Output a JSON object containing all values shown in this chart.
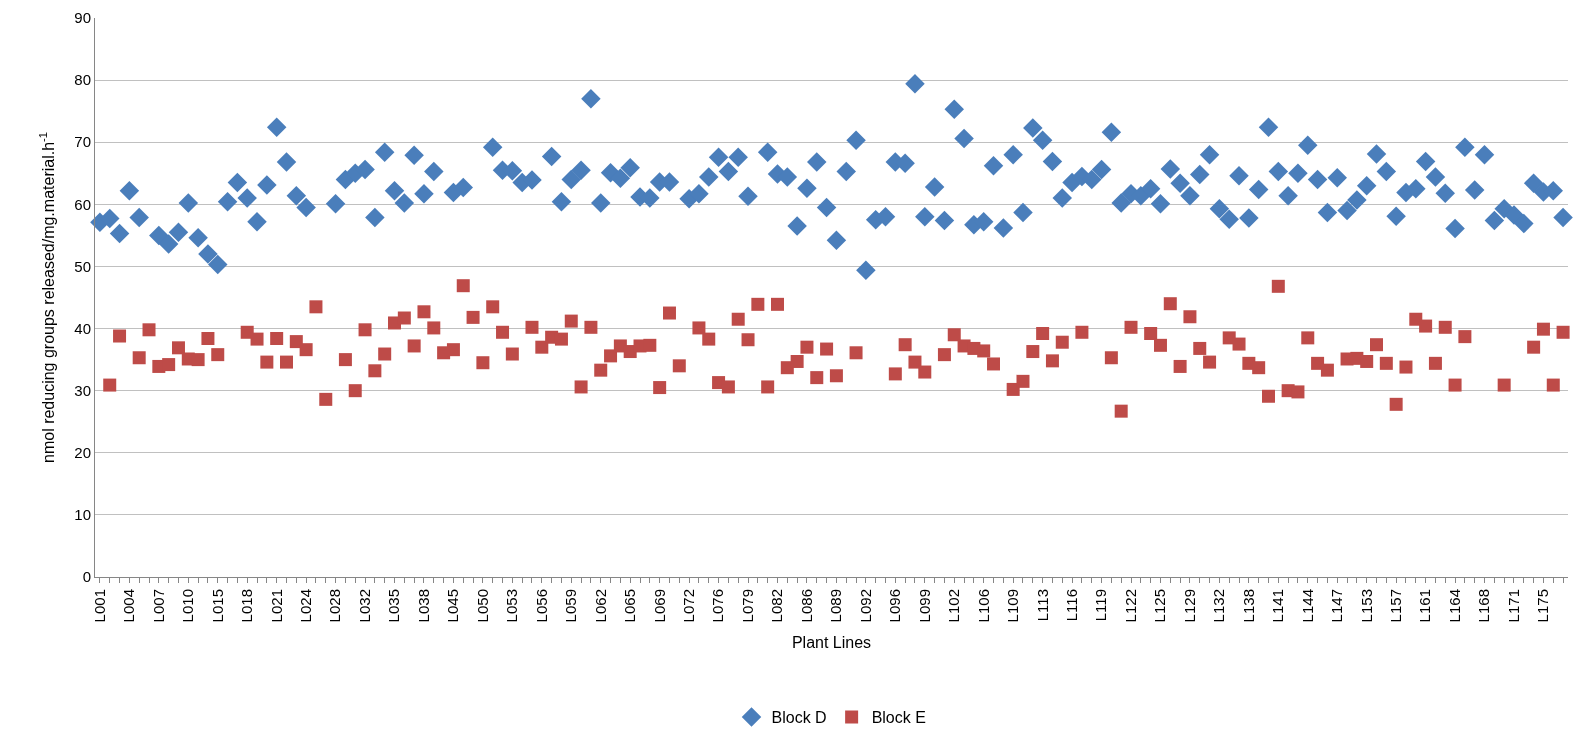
{
  "chart_data": {
    "type": "scatter",
    "xlabel": "Plant Lines",
    "ylabel": "nmol reducing groups released/mg.material.h$^{-1}$",
    "categories": [
      "L001",
      null,
      null,
      "L004",
      null,
      null,
      "L007",
      null,
      null,
      "L010",
      null,
      null,
      "L015",
      null,
      null,
      "L018",
      null,
      null,
      "L021",
      null,
      null,
      "L024",
      null,
      null,
      "L028",
      null,
      null,
      "L032",
      null,
      null,
      "L035",
      null,
      null,
      "L038",
      null,
      null,
      "L045",
      null,
      null,
      "L050",
      null,
      null,
      "L053",
      null,
      null,
      "L056",
      null,
      null,
      "L059",
      null,
      null,
      "L062",
      null,
      null,
      "L065",
      null,
      null,
      "L069",
      null,
      null,
      "L072",
      null,
      null,
      "L076",
      null,
      null,
      "L079",
      null,
      null,
      "L082",
      null,
      null,
      "L086",
      null,
      null,
      "L089",
      null,
      null,
      "L092",
      null,
      null,
      "L096",
      null,
      null,
      "L099",
      null,
      null,
      "L102",
      null,
      null,
      "L106",
      null,
      null,
      "L109",
      null,
      null,
      "L113",
      null,
      null,
      "L116",
      null,
      null,
      "L119",
      null,
      null,
      "L122",
      null,
      null,
      "L125",
      null,
      null,
      "L129",
      null,
      null,
      "L132",
      null,
      null,
      "L138",
      null,
      null,
      "L141",
      null,
      null,
      "L144",
      null,
      null,
      "L147",
      null,
      null,
      "L153",
      null,
      null,
      "L157",
      null,
      null,
      "L161",
      null,
      null,
      "L164",
      null,
      null,
      "L168",
      null,
      null,
      "L171",
      null,
      null,
      "L175",
      null,
      null
    ],
    "series": [
      {
        "name": "Block D",
        "color": "#4a7ebb",
        "marker": "diamond",
        "values": [
          57.1,
          57.7,
          55.3,
          62.2,
          57.9,
          null,
          55.0,
          53.6,
          55.5,
          60.2,
          54.6,
          52.0,
          50.3,
          60.4,
          63.5,
          61.0,
          57.2,
          63.1,
          72.4,
          66.8,
          61.4,
          59.5,
          null,
          null,
          60.1,
          64.0,
          65.0,
          65.6,
          57.9,
          68.4,
          62.2,
          60.2,
          67.9,
          61.7,
          65.3,
          null,
          61.9,
          62.7,
          null,
          null,
          69.2,
          65.5,
          65.4,
          63.5,
          63.9,
          null,
          67.7,
          60.4,
          64.0,
          65.5,
          77.0,
          60.2,
          65.1,
          64.2,
          65.9,
          61.2,
          61.0,
          63.6,
          63.6,
          null,
          60.9,
          61.7,
          64.4,
          67.6,
          65.3,
          67.6,
          61.3,
          null,
          68.4,
          64.9,
          64.4,
          56.5,
          62.6,
          66.8,
          59.5,
          54.2,
          65.3,
          70.3,
          49.4,
          57.5,
          58.0,
          66.8,
          66.6,
          79.4,
          58.0,
          62.8,
          57.4,
          75.3,
          70.6,
          56.7,
          57.2,
          66.2,
          56.2,
          68.0,
          58.7,
          72.3,
          70.3,
          66.9,
          61.0,
          63.5,
          64.5,
          64.0,
          65.6,
          71.6,
          60.2,
          61.7,
          61.4,
          62.5,
          60.1,
          65.7,
          63.4,
          61.4,
          64.8,
          68.0,
          59.3,
          57.6,
          64.6,
          57.8,
          62.4,
          72.4,
          65.3,
          61.4,
          65.0,
          69.5,
          64.0,
          58.7,
          64.3,
          59.0,
          60.7,
          63.0,
          68.1,
          65.3,
          58.1,
          61.9,
          62.5,
          66.9,
          64.4,
          61.8,
          56.1,
          69.2,
          62.3,
          68.0,
          57.4,
          59.3,
          58.3,
          56.9,
          63.4,
          62.0,
          62.2,
          57.9
        ]
      },
      {
        "name": "Block E",
        "color": "#be4b48",
        "marker": "square",
        "values": [
          null,
          30.9,
          38.8,
          null,
          35.3,
          39.8,
          33.9,
          34.2,
          36.9,
          35.1,
          35.0,
          38.4,
          35.8,
          null,
          null,
          39.4,
          38.3,
          34.6,
          38.4,
          34.6,
          37.9,
          36.6,
          43.5,
          28.6,
          null,
          35.0,
          30.0,
          39.8,
          33.2,
          35.9,
          40.9,
          41.7,
          37.2,
          42.7,
          40.1,
          36.1,
          36.6,
          46.9,
          41.8,
          34.5,
          43.5,
          39.4,
          35.9,
          null,
          40.2,
          37.0,
          38.6,
          38.3,
          41.2,
          30.6,
          40.2,
          33.3,
          35.6,
          37.2,
          36.3,
          37.2,
          37.3,
          30.5,
          42.5,
          34.0,
          null,
          40.1,
          38.3,
          31.3,
          30.6,
          41.5,
          38.2,
          43.9,
          30.6,
          43.9,
          33.7,
          34.7,
          37.0,
          32.1,
          36.7,
          32.4,
          null,
          36.1,
          null,
          null,
          null,
          32.7,
          37.4,
          34.6,
          33.0,
          null,
          35.8,
          39.0,
          37.2,
          36.8,
          36.4,
          34.3,
          null,
          30.2,
          31.5,
          36.3,
          39.2,
          34.8,
          37.8,
          null,
          39.4,
          null,
          null,
          35.3,
          26.7,
          40.2,
          null,
          39.2,
          37.3,
          44.0,
          33.9,
          41.9,
          36.8,
          34.6,
          null,
          38.5,
          37.5,
          34.4,
          33.7,
          29.1,
          46.8,
          30.0,
          29.8,
          38.5,
          34.4,
          33.3,
          null,
          35.1,
          35.2,
          34.7,
          37.4,
          34.4,
          27.8,
          33.8,
          41.5,
          40.4,
          34.4,
          40.2,
          30.9,
          38.7,
          null,
          null,
          null,
          30.9,
          null,
          null,
          37.0,
          39.9,
          30.9,
          39.4
        ]
      }
    ],
    "ylim": [
      0,
      90
    ],
    "yticks": [
      0,
      10,
      20,
      30,
      40,
      50,
      60,
      70,
      80,
      90
    ],
    "grid": "y",
    "legend": "bottom"
  }
}
